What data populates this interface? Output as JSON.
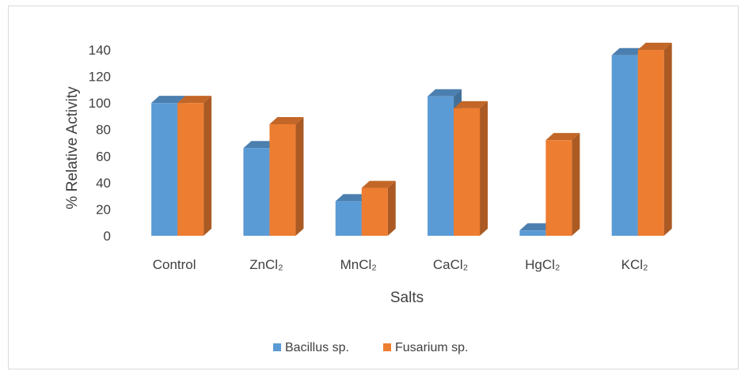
{
  "chart_data": {
    "type": "bar",
    "categories": [
      "Control",
      "ZnCl₂",
      "MnCl₂",
      "CaCl₂",
      "HgCl₂",
      "KCl₂"
    ],
    "series": [
      {
        "name": "Bacillus sp.",
        "values": [
          100,
          66,
          26,
          105,
          4,
          136
        ],
        "color": "#5b9bd5"
      },
      {
        "name": "Fusarium sp.",
        "values": [
          100,
          84,
          36,
          96,
          72,
          140
        ],
        "color": "#ed7d31"
      }
    ],
    "xlabel": "Salts",
    "ylabel": "% Relative Activity",
    "ylim": [
      0,
      140
    ],
    "yticks": [
      0,
      20,
      40,
      60,
      80,
      100,
      120,
      140
    ],
    "grid": false,
    "legend": "bottom",
    "style": "3d-clustered-column"
  }
}
